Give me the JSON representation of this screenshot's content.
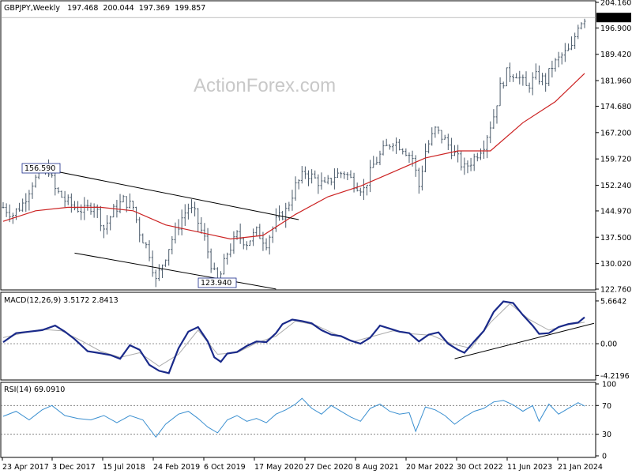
{
  "watermark": "ActionForex.com",
  "chart_data": [
    {
      "type": "candlestick",
      "title": "GBPJPY,Weekly",
      "ohlc": [
        "197.468",
        "200.044",
        "197.369",
        "199.857"
      ],
      "last_price": "199.857",
      "yticks": [
        "204.160",
        "196.900",
        "189.420",
        "181.960",
        "174.680",
        "167.200",
        "159.720",
        "152.240",
        "144.970",
        "137.500",
        "130.020",
        "122.760"
      ],
      "ylim": [
        122.76,
        204.16
      ],
      "xticks": [
        "23 Apr 2017",
        "3 Dec 2017",
        "15 Jul 2018",
        "24 Feb 2019",
        "6 Oct 2019",
        "17 May 2020",
        "27 Dec 2020",
        "8 Aug 2021",
        "20 Mar 2022",
        "30 Oct 2022",
        "11 Jun 2023",
        "21 Jan 2024"
      ],
      "annotations": [
        "156.590",
        "123.940"
      ],
      "colors": {
        "candles": "#4a5a6a",
        "ma": "#cc2222",
        "lines": "#000000"
      },
      "price_path": [
        [
          0,
          146
        ],
        [
          3,
          144
        ],
        [
          6,
          147
        ],
        [
          9,
          153
        ],
        [
          12,
          156
        ],
        [
          14,
          156.59
        ],
        [
          16,
          151
        ],
        [
          19,
          148
        ],
        [
          22,
          146
        ],
        [
          25,
          145
        ],
        [
          28,
          147
        ],
        [
          31,
          140
        ],
        [
          34,
          145
        ],
        [
          37,
          148
        ],
        [
          40,
          146
        ],
        [
          42,
          139
        ],
        [
          45,
          133
        ],
        [
          47,
          125
        ],
        [
          49,
          130
        ],
        [
          52,
          137
        ],
        [
          55,
          143
        ],
        [
          57,
          146
        ],
        [
          59,
          144
        ],
        [
          62,
          137
        ],
        [
          64,
          130
        ],
        [
          66,
          123.94
        ],
        [
          69,
          133
        ],
        [
          72,
          138
        ],
        [
          75,
          136
        ],
        [
          78,
          139
        ],
        [
          81,
          136
        ],
        [
          84,
          142
        ],
        [
          87,
          145
        ],
        [
          90,
          152
        ],
        [
          93,
          156
        ],
        [
          96,
          154
        ],
        [
          99,
          152
        ],
        [
          102,
          155
        ],
        [
          105,
          156
        ],
        [
          108,
          153
        ],
        [
          111,
          151
        ],
        [
          114,
          158
        ],
        [
          117,
          162
        ],
        [
          120,
          165
        ],
        [
          123,
          163
        ],
        [
          126,
          160
        ],
        [
          128,
          152
        ],
        [
          130,
          162
        ],
        [
          133,
          168
        ],
        [
          136,
          165
        ],
        [
          139,
          161
        ],
        [
          142,
          157
        ],
        [
          145,
          160
        ],
        [
          148,
          164
        ],
        [
          151,
          172
        ],
        [
          153,
          180
        ],
        [
          155,
          184
        ],
        [
          158,
          184
        ],
        [
          161,
          180
        ],
        [
          164,
          183
        ],
        [
          167,
          182
        ],
        [
          169,
          186
        ],
        [
          172,
          189
        ],
        [
          175,
          191
        ],
        [
          177,
          198
        ],
        [
          179,
          199.857
        ]
      ],
      "ma_path": [
        [
          0,
          142
        ],
        [
          10,
          145
        ],
        [
          20,
          146
        ],
        [
          30,
          146
        ],
        [
          40,
          145
        ],
        [
          50,
          141
        ],
        [
          60,
          139
        ],
        [
          70,
          137
        ],
        [
          80,
          138
        ],
        [
          90,
          144
        ],
        [
          100,
          149
        ],
        [
          110,
          152
        ],
        [
          120,
          156
        ],
        [
          130,
          160
        ],
        [
          140,
          162
        ],
        [
          150,
          162
        ],
        [
          160,
          170
        ],
        [
          170,
          176
        ],
        [
          179,
          184
        ]
      ],
      "trendlines": [
        {
          "p1": [
            14,
            156.59
          ],
          "p2": [
            91,
            142.5
          ]
        },
        {
          "p1": [
            22,
            133
          ],
          "p2": [
            84,
            122.8
          ]
        }
      ]
    },
    {
      "type": "line",
      "title": "MACD(12,26,9) 3.5172 2.8413",
      "yticks": [
        "5.6642",
        "0.00",
        "-4.2196"
      ],
      "ylim": [
        -4.6,
        6.6
      ],
      "macd_path": [
        [
          0,
          0.2
        ],
        [
          4,
          1.4
        ],
        [
          8,
          1.6
        ],
        [
          12,
          1.8
        ],
        [
          16,
          2.4
        ],
        [
          19,
          1.6
        ],
        [
          22,
          0.6
        ],
        [
          26,
          -1.0
        ],
        [
          29,
          -1.2
        ],
        [
          33,
          -1.5
        ],
        [
          36,
          -2.0
        ],
        [
          39,
          -0.2
        ],
        [
          42,
          -0.8
        ],
        [
          45,
          -2.8
        ],
        [
          48,
          -3.6
        ],
        [
          51,
          -3.9
        ],
        [
          54,
          -0.6
        ],
        [
          57,
          1.6
        ],
        [
          60,
          2.2
        ],
        [
          63,
          0.3
        ],
        [
          65,
          -1.8
        ],
        [
          67,
          -2.4
        ],
        [
          69,
          -1.3
        ],
        [
          72,
          -1.1
        ],
        [
          75,
          -0.3
        ],
        [
          78,
          0.3
        ],
        [
          81,
          0.2
        ],
        [
          84,
          1.4
        ],
        [
          86,
          2.6
        ],
        [
          89,
          3.2
        ],
        [
          92,
          3.0
        ],
        [
          95,
          2.7
        ],
        [
          98,
          1.8
        ],
        [
          101,
          1.2
        ],
        [
          104,
          1.0
        ],
        [
          107,
          0.4
        ],
        [
          110,
          0.0
        ],
        [
          113,
          0.8
        ],
        [
          116,
          2.4
        ],
        [
          119,
          2.0
        ],
        [
          122,
          1.6
        ],
        [
          125,
          1.4
        ],
        [
          128,
          0.3
        ],
        [
          131,
          1.2
        ],
        [
          134,
          1.5
        ],
        [
          137,
          0.0
        ],
        [
          140,
          -0.8
        ],
        [
          142,
          -1.2
        ],
        [
          145,
          0.3
        ],
        [
          148,
          1.7
        ],
        [
          151,
          4.2
        ],
        [
          154,
          5.6
        ],
        [
          157,
          5.4
        ],
        [
          160,
          3.8
        ],
        [
          163,
          2.4
        ],
        [
          165,
          1.3
        ],
        [
          168,
          1.4
        ],
        [
          171,
          2.2
        ],
        [
          174,
          2.6
        ],
        [
          177,
          2.8
        ],
        [
          179,
          3.5
        ]
      ],
      "signal_path": [
        [
          0,
          0.8
        ],
        [
          6,
          1.4
        ],
        [
          12,
          1.9
        ],
        [
          18,
          1.7
        ],
        [
          24,
          0.4
        ],
        [
          30,
          -1.0
        ],
        [
          36,
          -1.8
        ],
        [
          42,
          -1.2
        ],
        [
          48,
          -3.0
        ],
        [
          54,
          -1.4
        ],
        [
          60,
          1.8
        ],
        [
          66,
          -1.4
        ],
        [
          72,
          -1.2
        ],
        [
          78,
          0.1
        ],
        [
          84,
          1.0
        ],
        [
          90,
          3.0
        ],
        [
          96,
          2.5
        ],
        [
          102,
          1.3
        ],
        [
          108,
          0.3
        ],
        [
          114,
          1.0
        ],
        [
          120,
          1.7
        ],
        [
          126,
          1.3
        ],
        [
          132,
          1.1
        ],
        [
          138,
          0.0
        ],
        [
          144,
          -0.6
        ],
        [
          150,
          2.8
        ],
        [
          156,
          5.3
        ],
        [
          162,
          3.2
        ],
        [
          168,
          1.8
        ],
        [
          174,
          2.5
        ],
        [
          179,
          2.84
        ]
      ],
      "trendline": {
        "p1": [
          139,
          -2.0
        ],
        "p2": [
          179,
          2.6
        ]
      },
      "colors": {
        "macd": "#1a2a8a",
        "signal": "#aaaaaa",
        "zero": "#808080"
      }
    },
    {
      "type": "line",
      "title": "RSI(14) 69.0910",
      "yticks": [
        "100",
        "70",
        "30",
        "0"
      ],
      "ylim": [
        0,
        100
      ],
      "rsi_path": [
        [
          0,
          55
        ],
        [
          4,
          62
        ],
        [
          8,
          50
        ],
        [
          12,
          64
        ],
        [
          15,
          70
        ],
        [
          19,
          56
        ],
        [
          23,
          52
        ],
        [
          27,
          50
        ],
        [
          31,
          56
        ],
        [
          35,
          46
        ],
        [
          39,
          56
        ],
        [
          43,
          50
        ],
        [
          47,
          26
        ],
        [
          50,
          44
        ],
        [
          54,
          58
        ],
        [
          57,
          62
        ],
        [
          60,
          52
        ],
        [
          63,
          40
        ],
        [
          66,
          32
        ],
        [
          69,
          50
        ],
        [
          72,
          56
        ],
        [
          75,
          48
        ],
        [
          78,
          52
        ],
        [
          81,
          46
        ],
        [
          84,
          58
        ],
        [
          87,
          64
        ],
        [
          90,
          72
        ],
        [
          92,
          80
        ],
        [
          95,
          66
        ],
        [
          98,
          58
        ],
        [
          101,
          70
        ],
        [
          104,
          62
        ],
        [
          107,
          54
        ],
        [
          110,
          48
        ],
        [
          113,
          66
        ],
        [
          116,
          72
        ],
        [
          119,
          62
        ],
        [
          122,
          58
        ],
        [
          125,
          60
        ],
        [
          127,
          34
        ],
        [
          130,
          68
        ],
        [
          133,
          64
        ],
        [
          136,
          56
        ],
        [
          139,
          44
        ],
        [
          142,
          54
        ],
        [
          145,
          62
        ],
        [
          148,
          66
        ],
        [
          151,
          75
        ],
        [
          154,
          77
        ],
        [
          157,
          71
        ],
        [
          160,
          62
        ],
        [
          163,
          70
        ],
        [
          165,
          48
        ],
        [
          168,
          72
        ],
        [
          171,
          58
        ],
        [
          174,
          66
        ],
        [
          177,
          74
        ],
        [
          179,
          69.09
        ]
      ],
      "colors": {
        "rsi": "#3a8fd0",
        "levels": "#707070"
      }
    }
  ]
}
